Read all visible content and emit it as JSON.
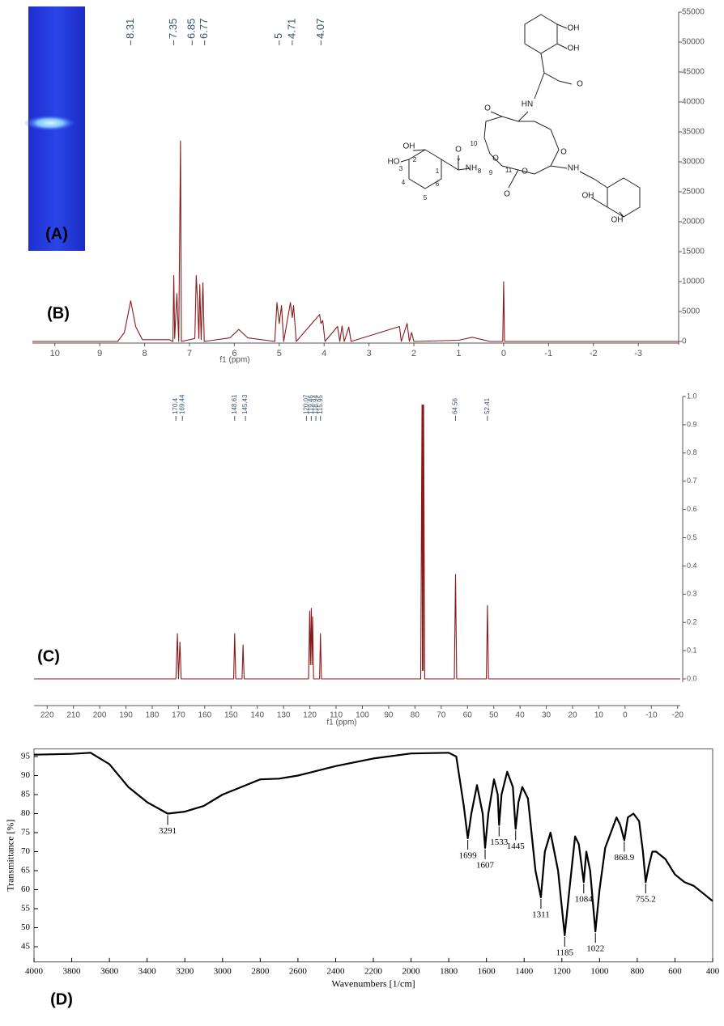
{
  "panel_a": {
    "label": "(A)"
  },
  "structure": {
    "labels": [
      "OH",
      "OH",
      "O",
      "HN",
      "O",
      "O",
      "10",
      "O",
      "7",
      "O",
      "OH",
      "2",
      "HO",
      "3",
      "NH",
      "8",
      "9",
      "11",
      "O",
      "NH",
      "O",
      "1",
      "6",
      "4",
      "5",
      "OH",
      "OH"
    ]
  },
  "chart_data": [
    {
      "type": "line",
      "panel_label": "(B)",
      "xlabel": "f1 (ppm)",
      "color": "#8b1a1a",
      "peak_labels": [
        8.31,
        7.35,
        6.85,
        6.77,
        5,
        4.71,
        4.07
      ],
      "x": [
        10.5,
        8.6,
        8.45,
        8.31,
        8.2,
        8.05,
        7.45,
        7.37,
        7.35,
        7.33,
        7.28,
        7.24,
        7.2,
        7.18,
        6.88,
        6.85,
        6.82,
        6.79,
        6.77,
        6.74,
        6.7,
        6.67,
        6.1,
        5.9,
        5.7,
        5.1,
        5.05,
        5.0,
        4.95,
        4.9,
        4.75,
        4.71,
        4.68,
        4.62,
        4.1,
        4.07,
        4.03,
        3.98,
        3.7,
        3.65,
        3.6,
        3.55,
        3.45,
        3.4,
        2.32,
        2.28,
        2.15,
        2.1,
        2.05,
        2.0,
        1.0,
        0.7,
        0.3,
        0.02,
        0,
        -0.02,
        -3.9
      ],
      "values": [
        0,
        0,
        1500,
        6800,
        2500,
        300,
        300,
        0,
        11000,
        500,
        8000,
        0,
        33500,
        0,
        500,
        11000,
        7000,
        500,
        9500,
        300,
        9800,
        0,
        600,
        2000,
        600,
        0,
        6500,
        3000,
        6000,
        0,
        6500,
        4000,
        6000,
        0,
        4500,
        3000,
        3500,
        0,
        2500,
        0,
        2600,
        0,
        2400,
        0,
        2500,
        0,
        3000,
        0,
        1500,
        0,
        200,
        700,
        0,
        0,
        10000,
        0,
        0
      ],
      "xlim": [
        10.5,
        -3.9
      ],
      "xticks": [
        10,
        9,
        8,
        7,
        6,
        5,
        4,
        3,
        2,
        1,
        0,
        -1,
        -2,
        -3
      ],
      "ylim": [
        0,
        55000
      ],
      "yticks": [
        0,
        5000,
        10000,
        15000,
        20000,
        25000,
        30000,
        35000,
        40000,
        45000,
        50000,
        55000
      ]
    },
    {
      "type": "line",
      "panel_label": "(C)",
      "xlabel": "f1 (ppm)",
      "color": "#8b1a1a",
      "peak_labels": [
        170.4,
        169.44,
        148.61,
        145.43,
        120.07,
        119.46,
        118.94,
        115.95,
        64.56,
        52.41
      ],
      "x": [
        225,
        171,
        170.4,
        170.0,
        169.44,
        169.0,
        149,
        148.61,
        148.2,
        145.8,
        145.43,
        145.0,
        120.5,
        120.07,
        119.8,
        119.46,
        119.2,
        118.94,
        118.6,
        116.3,
        115.95,
        115.6,
        77.8,
        77.3,
        77.15,
        77.0,
        76.85,
        76.7,
        76.3,
        65.0,
        64.56,
        64.1,
        52.8,
        52.41,
        52.0,
        -21
      ],
      "values": [
        0,
        0,
        0.16,
        0,
        0.13,
        0,
        0,
        0.16,
        0,
        0,
        0.12,
        0,
        0,
        0.24,
        0.05,
        0.25,
        0.05,
        0.22,
        0,
        0,
        0.16,
        0,
        0,
        0.97,
        0.03,
        0.97,
        0.03,
        0.97,
        0,
        0,
        0.37,
        0,
        0,
        0.26,
        0,
        0
      ],
      "xlim": [
        225,
        -21
      ],
      "xticks": [
        220,
        210,
        200,
        190,
        180,
        170,
        160,
        150,
        140,
        130,
        120,
        110,
        100,
        90,
        80,
        70,
        60,
        50,
        40,
        30,
        20,
        10,
        0,
        -10,
        -20
      ],
      "ylim": [
        0,
        1
      ],
      "yticks": [
        {
          "value": 0,
          "label": "0.0"
        },
        0.1,
        0.2,
        0.3,
        0.4,
        0.5,
        0.6,
        0.7,
        0.8,
        0.9,
        {
          "value": 1,
          "label": "1.0"
        }
      ]
    },
    {
      "type": "line",
      "panel_label": "(D)",
      "xlabel": "Wavenumbers [1/cm]",
      "ylabel": "Transmittance [%]",
      "color": "#000000",
      "peak_labels": [
        3291,
        1699,
        1607,
        1533,
        1445,
        1311,
        1185,
        1084,
        1022,
        868.9,
        755.2
      ],
      "x": [
        4000,
        3800,
        3700,
        3600,
        3500,
        3400,
        3291,
        3200,
        3100,
        3000,
        2900,
        2800,
        2700,
        2600,
        2400,
        2200,
        2000,
        1800,
        1760,
        1720,
        1699,
        1680,
        1650,
        1620,
        1607,
        1590,
        1560,
        1540,
        1533,
        1520,
        1490,
        1460,
        1445,
        1430,
        1410,
        1380,
        1340,
        1311,
        1290,
        1260,
        1220,
        1185,
        1160,
        1130,
        1110,
        1084,
        1070,
        1050,
        1022,
        1000,
        970,
        940,
        910,
        890,
        868.9,
        850,
        820,
        790,
        770,
        755.2,
        740,
        720,
        700,
        650,
        600,
        550,
        500,
        450,
        400
      ],
      "values": [
        95.5,
        95.7,
        96,
        93,
        87,
        83,
        80,
        80.5,
        82,
        85,
        87,
        89,
        89.2,
        90,
        92.5,
        94.5,
        95.8,
        96,
        95,
        82,
        73.5,
        80,
        87.5,
        80,
        71,
        80,
        89,
        85,
        77,
        85,
        91,
        87,
        76,
        83,
        87,
        84,
        65,
        58,
        70,
        75,
        65,
        48,
        60,
        74,
        72,
        62,
        70,
        65,
        49,
        60,
        71,
        75,
        79,
        77,
        73,
        79,
        80,
        78,
        70,
        62,
        66,
        70,
        70,
        68,
        64,
        62,
        61,
        59,
        57
      ],
      "xlim": [
        4000,
        400
      ],
      "xticks": [
        4000,
        3800,
        3600,
        3400,
        3200,
        3000,
        2800,
        2600,
        2400,
        2200,
        2000,
        1800,
        1600,
        1400,
        1200,
        1000,
        800,
        600,
        400
      ],
      "ylim": [
        41,
        97
      ],
      "yticks": [
        45,
        50,
        55,
        60,
        65,
        70,
        75,
        80,
        85,
        90,
        95
      ]
    }
  ]
}
